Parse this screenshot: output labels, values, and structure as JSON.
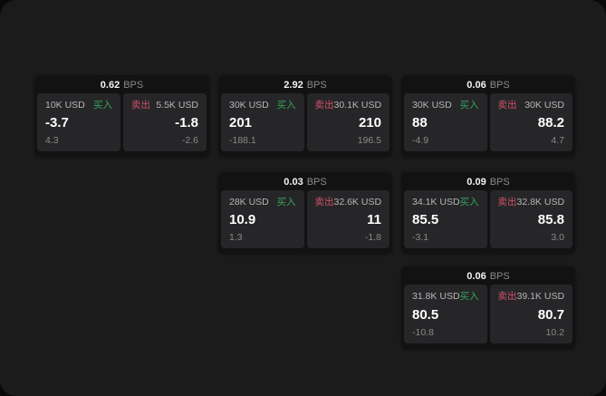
{
  "colors": {
    "outer_background": "#090909",
    "panel_background": "#1b1b1c",
    "card_background": "#121213",
    "tile_background": "#262628",
    "buy_accent": "#35a55a",
    "sell_accent": "#cf5268",
    "primary_text": "#ffffff",
    "muted_text": "#8a8a8a"
  },
  "labels": {
    "bps_unit": "BPS",
    "buy": "买入",
    "sell": "卖出"
  },
  "cards": [
    {
      "bps_value": "0.62",
      "bps_unit": "BPS",
      "buy": {
        "amount": "10K USD",
        "side": "买入",
        "price": "-3.7",
        "delta": "4.3"
      },
      "sell": {
        "side": "卖出",
        "amount": "5.5K USD",
        "price": "-1.8",
        "delta": "-2.6"
      }
    },
    {
      "bps_value": "2.92",
      "bps_unit": "BPS",
      "buy": {
        "amount": "30K USD",
        "side": "买入",
        "price": "201",
        "delta": "-188.1"
      },
      "sell": {
        "side": "卖出",
        "amount": "30.1K USD",
        "price": "210",
        "delta": "196.5"
      }
    },
    {
      "bps_value": "0.06",
      "bps_unit": "BPS",
      "buy": {
        "amount": "30K USD",
        "side": "买入",
        "price": "88",
        "delta": "-4.9"
      },
      "sell": {
        "side": "卖出",
        "amount": "30K USD",
        "price": "88.2",
        "delta": "4.7"
      }
    },
    {
      "bps_value": "0.03",
      "bps_unit": "BPS",
      "buy": {
        "amount": "28K USD",
        "side": "买入",
        "price": "10.9",
        "delta": "1.3"
      },
      "sell": {
        "side": "卖出",
        "amount": "32.6K USD",
        "price": "11",
        "delta": "-1.8"
      }
    },
    {
      "bps_value": "0.09",
      "bps_unit": "BPS",
      "buy": {
        "amount": "34.1K USD",
        "side": "买入",
        "price": "85.5",
        "delta": "-3.1"
      },
      "sell": {
        "side": "卖出",
        "amount": "32.8K USD",
        "price": "85.8",
        "delta": "3.0"
      }
    },
    {
      "bps_value": "0.06",
      "bps_unit": "BPS",
      "buy": {
        "amount": "31.8K USD",
        "side": "买入",
        "price": "80.5",
        "delta": "-10.8"
      },
      "sell": {
        "side": "卖出",
        "amount": "39.1K USD",
        "price": "80.7",
        "delta": "10.2"
      }
    }
  ]
}
